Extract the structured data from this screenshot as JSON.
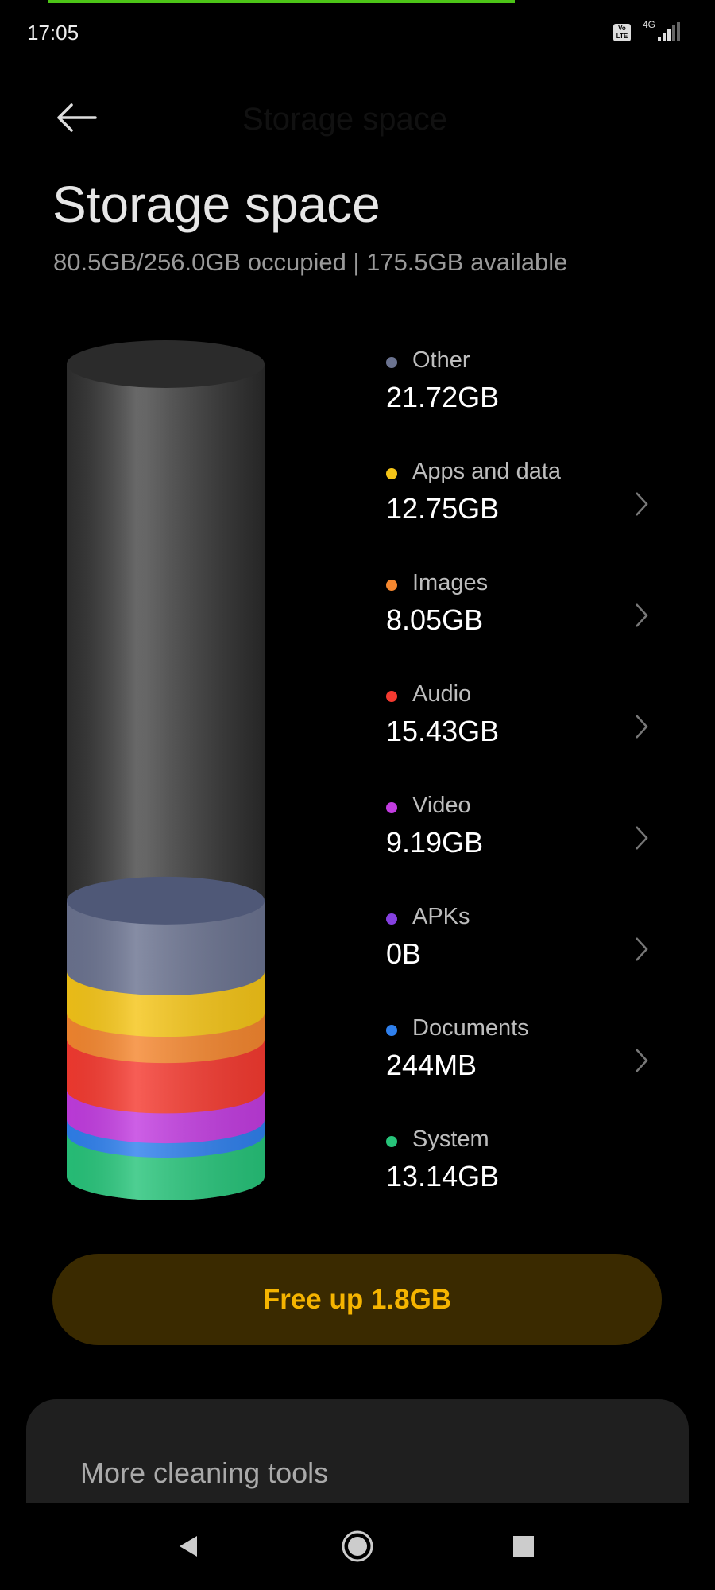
{
  "status_bar": {
    "time": "17:05",
    "volte": "Vo LTE",
    "network": "4G",
    "signal_level": 0.6
  },
  "header": {
    "title": "Storage space",
    "back_icon": "arrow-left-icon"
  },
  "page": {
    "title": "Storage space",
    "subtitle": "80.5GB/256.0GB occupied | 175.5GB available"
  },
  "categories": [
    {
      "label": "Other",
      "value": "21.72GB",
      "gb": 21.72,
      "color": "#6b7390",
      "chevron": false
    },
    {
      "label": "Apps and data",
      "value": "12.75GB",
      "gb": 12.75,
      "color": "#f5c518",
      "chevron": true
    },
    {
      "label": "Images",
      "value": "8.05GB",
      "gb": 8.05,
      "color": "#f5872f",
      "chevron": true
    },
    {
      "label": "Audio",
      "value": "15.43GB",
      "gb": 15.43,
      "color": "#f53a30",
      "chevron": true
    },
    {
      "label": "Video",
      "value": "9.19GB",
      "gb": 9.19,
      "color": "#c23ce0",
      "chevron": true
    },
    {
      "label": "APKs",
      "value": "0B",
      "gb": 0,
      "color": "#8540e0",
      "chevron": true
    },
    {
      "label": "Documents",
      "value": "244MB",
      "gb": 0.244,
      "color": "#2f80ed",
      "chevron": true
    },
    {
      "label": "System",
      "value": "13.14GB",
      "gb": 13.14,
      "color": "#27c47a",
      "chevron": false
    }
  ],
  "free_up_button": "Free up 1.8GB",
  "tools_card": {
    "title": "More cleaning tools"
  },
  "nav": {
    "back": "back-triangle-icon",
    "home": "home-circle-icon",
    "recents": "recents-square-icon"
  }
}
